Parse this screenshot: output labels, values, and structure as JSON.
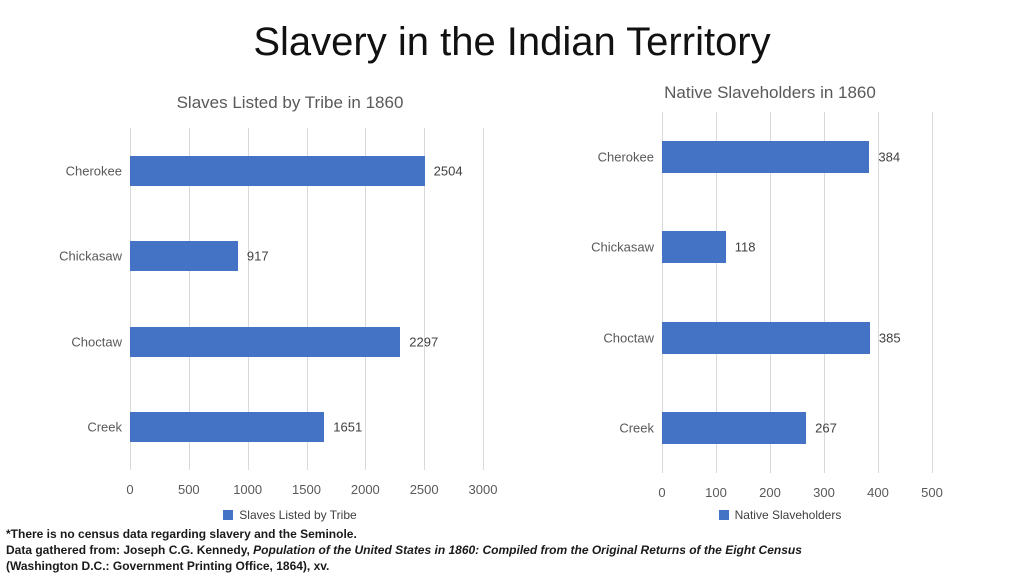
{
  "slide": {
    "title": "Slavery in the Indian Territory"
  },
  "chart_data": [
    {
      "type": "bar",
      "orientation": "horizontal",
      "title": "Slaves Listed by Tribe in 1860",
      "categories": [
        "Cherokee",
        "Chickasaw",
        "Choctaw",
        "Creek"
      ],
      "values": [
        2504,
        917,
        2297,
        1651
      ],
      "xlim": [
        0,
        3000
      ],
      "xticks": [
        0,
        500,
        1000,
        1500,
        2000,
        2500,
        3000
      ],
      "legend": "Slaves Listed by Tribe",
      "legend_position": "bottom",
      "grid": true,
      "bar_color": "#4472C4"
    },
    {
      "type": "bar",
      "orientation": "horizontal",
      "title": "Native Slaveholders in 1860",
      "categories": [
        "Cherokee",
        "Chickasaw",
        "Choctaw",
        "Creek"
      ],
      "values": [
        384,
        118,
        385,
        267
      ],
      "xlim": [
        0,
        500
      ],
      "xticks": [
        0,
        100,
        200,
        300,
        400,
        500
      ],
      "legend": "Native Slaveholders",
      "legend_position": "bottom",
      "grid": true,
      "bar_color": "#4472C4"
    }
  ],
  "footnotes": {
    "line1": "*There is no census data regarding slavery and the Seminole.",
    "line2_prefix": "Data gathered from: Joseph C.G. Kennedy, ",
    "line2_italic": "Population of the United States in 1860: Compiled from the Original Returns of the Eight Census",
    "line3": "(Washington D.C.: Government Printing Office, 1864), xv."
  },
  "colors": {
    "bar": "#4472C4",
    "gridline": "#D9D9D9",
    "chart_title": "#595959",
    "axis_label": "#595959",
    "value_label": "#404040"
  }
}
